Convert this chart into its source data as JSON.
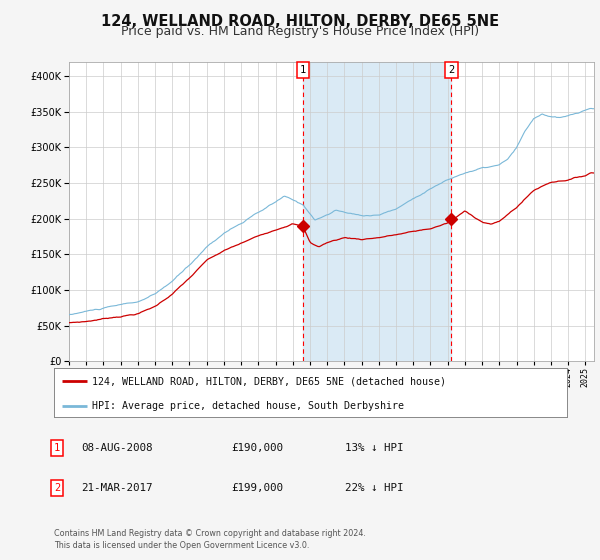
{
  "title": "124, WELLAND ROAD, HILTON, DERBY, DE65 5NE",
  "subtitle": "Price paid vs. HM Land Registry's House Price Index (HPI)",
  "x_start": 1995.0,
  "x_end": 2025.5,
  "y_min": 0,
  "y_max": 420000,
  "yticks": [
    0,
    50000,
    100000,
    150000,
    200000,
    250000,
    300000,
    350000,
    400000
  ],
  "ytick_labels": [
    "£0",
    "£50K",
    "£100K",
    "£150K",
    "£200K",
    "£250K",
    "£300K",
    "£350K",
    "£400K"
  ],
  "xticks": [
    1995,
    1996,
    1997,
    1998,
    1999,
    2000,
    2001,
    2002,
    2003,
    2004,
    2005,
    2006,
    2007,
    2008,
    2009,
    2010,
    2011,
    2012,
    2013,
    2014,
    2015,
    2016,
    2017,
    2018,
    2019,
    2020,
    2021,
    2022,
    2023,
    2024,
    2025
  ],
  "hpi_color": "#7ab8d8",
  "sale_color": "#cc0000",
  "plot_bg": "#ffffff",
  "fig_bg": "#f5f5f5",
  "grid_color": "#cccccc",
  "point1_x": 2008.6,
  "point1_y": 190000,
  "point2_x": 2017.22,
  "point2_y": 199000,
  "shade_x1": 2008.6,
  "shade_x2": 2017.22,
  "shade_color": "#daeaf5",
  "legend_label_sale": "124, WELLAND ROAD, HILTON, DERBY, DE65 5NE (detached house)",
  "legend_label_hpi": "HPI: Average price, detached house, South Derbyshire",
  "table_row1": [
    "1",
    "08-AUG-2008",
    "£190,000",
    "13% ↓ HPI"
  ],
  "table_row2": [
    "2",
    "21-MAR-2017",
    "£199,000",
    "22% ↓ HPI"
  ],
  "footer": "Contains HM Land Registry data © Crown copyright and database right 2024.\nThis data is licensed under the Open Government Licence v3.0.",
  "title_fontsize": 10.5,
  "subtitle_fontsize": 9
}
